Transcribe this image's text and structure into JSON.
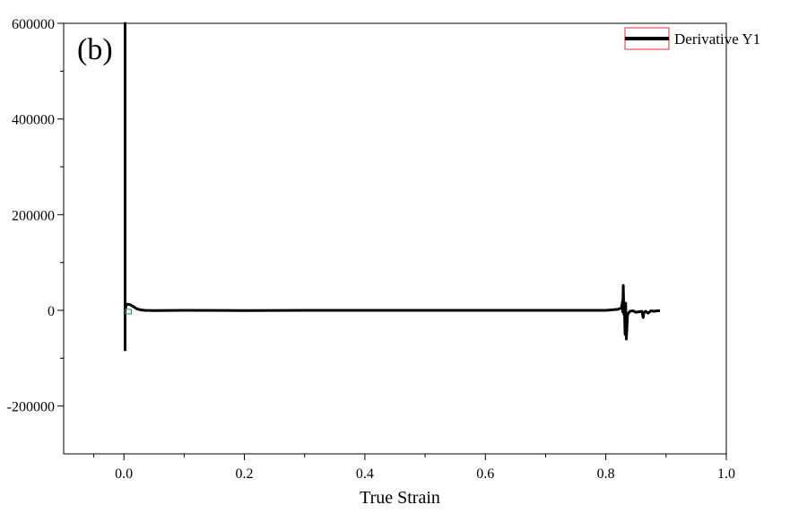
{
  "chart_data": {
    "type": "line",
    "panel_label": "(b)",
    "xlabel": "True Strain",
    "ylabel": "",
    "xlim": [
      -0.1,
      1.0
    ],
    "ylim": [
      -300000,
      600000
    ],
    "x_ticks": [
      0.0,
      0.2,
      0.4,
      0.6,
      0.8,
      1.0
    ],
    "x_tick_labels": [
      "0.0",
      "0.2",
      "0.4",
      "0.6",
      "0.8",
      "1.0"
    ],
    "y_ticks": [
      -200000,
      0,
      200000,
      400000,
      600000
    ],
    "y_tick_labels": [
      "-200000",
      "0",
      "200000",
      "400000",
      "600000"
    ],
    "grid": false,
    "legend": {
      "position": "top-right",
      "entries": [
        "Derivative Y1"
      ]
    },
    "colors": {
      "series": "#000000",
      "legend_box": "#e03030",
      "marker_green": "#2e8b57"
    },
    "series": [
      {
        "name": "Derivative Y1",
        "x": [
          0.002,
          0.002,
          0.002,
          0.003,
          0.004,
          0.006,
          0.01,
          0.014,
          0.018,
          0.022,
          0.028,
          0.035,
          0.05,
          0.1,
          0.2,
          0.3,
          0.4,
          0.5,
          0.6,
          0.7,
          0.8,
          0.82,
          0.826,
          0.828,
          0.828,
          0.829,
          0.83,
          0.831,
          0.832,
          0.833,
          0.834,
          0.835,
          0.836,
          0.838,
          0.84,
          0.845,
          0.85,
          0.86,
          0.862,
          0.863,
          0.866,
          0.87,
          0.875,
          0.88,
          0.885,
          0.89
        ],
        "y": [
          -85000,
          600000,
          2000,
          6000,
          12000,
          13000,
          12000,
          9000,
          6000,
          3000,
          1000,
          0,
          -500,
          0,
          -400,
          0,
          0,
          0,
          0,
          0,
          0,
          2000,
          5000,
          20000,
          -3000,
          52000,
          -8000,
          1000,
          -50000,
          15000,
          -60000,
          -40000,
          -10000,
          -5000,
          -2000,
          -1000,
          -4000,
          -2000,
          -15000,
          -5000,
          -2000,
          -6000,
          -1000,
          -2000,
          -1000,
          -1000
        ]
      }
    ]
  }
}
